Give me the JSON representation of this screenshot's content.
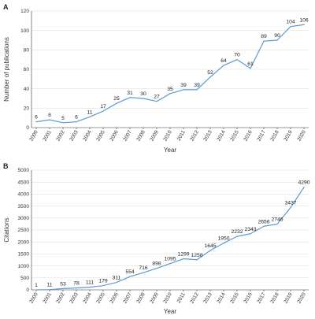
{
  "panels": [
    {
      "letter": "A"
    },
    {
      "letter": "B"
    }
  ],
  "chart_data": [
    {
      "type": "line",
      "panel": "A",
      "title": "",
      "xlabel": "Year",
      "ylabel": "Number of publications",
      "x": [
        "2000",
        "2001",
        "2002",
        "2003",
        "2004",
        "2005",
        "2006",
        "2007",
        "2008",
        "2009",
        "2010",
        "2011",
        "2012",
        "2013",
        "2014",
        "2015",
        "2016",
        "2017",
        "2018",
        "2019",
        "2020"
      ],
      "series": [
        {
          "values": [
            6,
            8,
            5,
            6,
            11,
            17,
            25,
            31,
            30,
            27,
            35,
            39,
            39,
            52,
            64,
            70,
            61,
            89,
            90,
            104,
            106
          ]
        }
      ],
      "data_labels": [
        "6",
        "8",
        "5",
        "6",
        "11",
        "17",
        "25",
        "31",
        "30",
        "27",
        "35",
        "39",
        "39",
        "52",
        "64",
        "70",
        "61",
        "89",
        "90",
        "104",
        "106"
      ],
      "ylim": [
        0,
        120
      ],
      "yticks": [
        0,
        20,
        40,
        60,
        80,
        100,
        120
      ],
      "grid": true,
      "legend": "none",
      "color": "#5b9bd5"
    },
    {
      "type": "line",
      "panel": "B",
      "title": "",
      "xlabel": "Year",
      "ylabel": "Citations",
      "x": [
        "2000",
        "2001",
        "2002",
        "2003",
        "2004",
        "2005",
        "2006",
        "2007",
        "2008",
        "2009",
        "2010",
        "2011",
        "2012",
        "2013",
        "2014",
        "2015",
        "2016",
        "2017",
        "2018",
        "2019",
        "2020"
      ],
      "series": [
        {
          "values": [
            1,
            11,
            53,
            78,
            111,
            179,
            311,
            554,
            716,
            898,
            1095,
            1299,
            1258,
            1645,
            1950,
            2232,
            2343,
            2656,
            2746,
            3437,
            4290
          ]
        }
      ],
      "data_labels": [
        "1",
        "11",
        "53",
        "78",
        "111",
        "179",
        "311",
        "554",
        "716",
        "898",
        "1095",
        "1299",
        "1258",
        "1645",
        "1950",
        "2232",
        "2343",
        "2656",
        "2746",
        "3437",
        "4290"
      ],
      "ylim": [
        0,
        5000
      ],
      "yticks": [
        0,
        500,
        1000,
        1500,
        2000,
        2500,
        3000,
        3500,
        4000,
        4500,
        5000
      ],
      "grid": true,
      "legend": "none",
      "color": "#5b9bd5"
    }
  ]
}
